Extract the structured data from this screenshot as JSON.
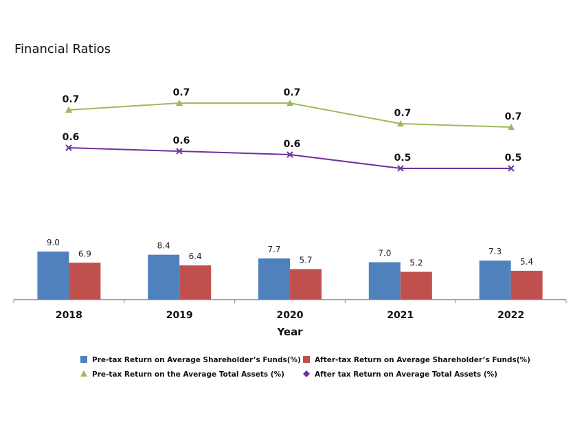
{
  "title": "Financial Ratios",
  "chart_data": {
    "type": "bar",
    "title": "Financial Ratios",
    "xlabel": "Year",
    "ylabel": "",
    "categories": [
      "2018",
      "2019",
      "2020",
      "2021",
      "2022"
    ],
    "bar_ylim": [
      0,
      9
    ],
    "series": [
      {
        "name": "Pre-tax Return on Average Shareholder’s Funds(%)",
        "kind": "bar",
        "color": "#4F81BD",
        "values": [
          9.0,
          8.4,
          7.7,
          7.0,
          7.3
        ],
        "labels": [
          "9.0",
          "8.4",
          "7.7",
          "7.0",
          "7.3"
        ]
      },
      {
        "name": "After-tax Return on Average Shareholder’s Funds(%)",
        "kind": "bar",
        "color": "#C0504D",
        "values": [
          6.9,
          6.4,
          5.7,
          5.2,
          5.4
        ],
        "labels": [
          "6.9",
          "6.4",
          "5.7",
          "5.2",
          "5.4"
        ]
      },
      {
        "name": "Pre-tax Return on the Average Total Assets (%)",
        "kind": "line",
        "marker": "triangle",
        "color": "#9BBB59",
        "values": [
          0.7,
          0.72,
          0.72,
          0.66,
          0.65
        ],
        "labels": [
          "0.7",
          "0.7",
          "0.7",
          "0.7",
          "0.7"
        ]
      },
      {
        "name": "After tax Return on Average Total Assets (%)",
        "kind": "line",
        "marker": "x",
        "legend_marker": "diamond",
        "color": "#7030A0",
        "values": [
          0.59,
          0.58,
          0.57,
          0.53,
          0.53
        ],
        "labels": [
          "0.6",
          "0.6",
          "0.6",
          "0.5",
          "0.5"
        ]
      }
    ],
    "line_ylim": [
      0.42,
      0.78
    ],
    "legend": "bottom"
  }
}
